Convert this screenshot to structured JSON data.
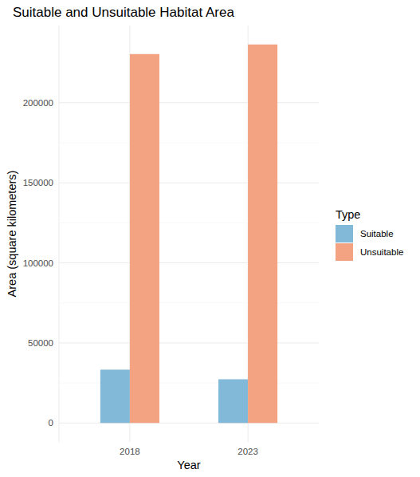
{
  "chart_data": {
    "type": "bar",
    "title": "Suitable and Unsuitable Habitat Area",
    "x_label": "Year",
    "y_label": "Area (square kilometers)",
    "categories": [
      "2018",
      "2023"
    ],
    "series": [
      {
        "name": "Suitable",
        "color": "#82b8d8",
        "values": [
          33300,
          27300
        ]
      },
      {
        "name": "Unsuitable",
        "color": "#f3a382",
        "values": [
          230400,
          236400
        ]
      }
    ],
    "ylim": [
      -11820,
      248220
    ],
    "yticks": [
      0,
      50000,
      100000,
      150000,
      200000
    ],
    "grid": true,
    "legend": "right",
    "legend_title": "Type"
  }
}
